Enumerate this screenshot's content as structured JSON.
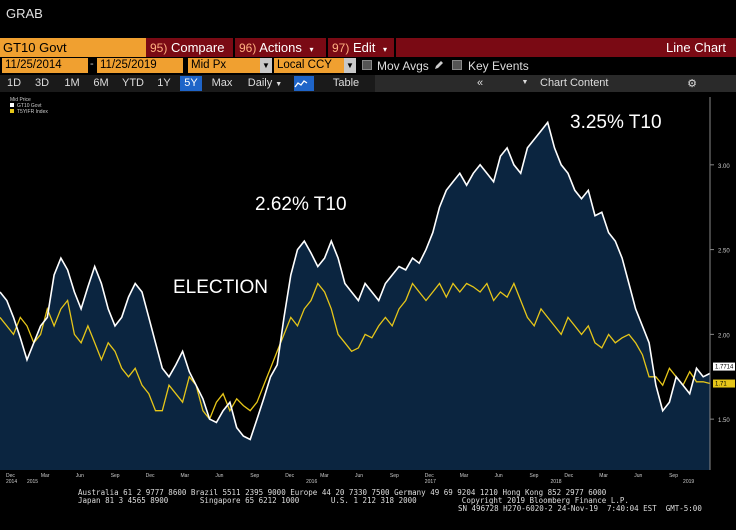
{
  "window": {
    "title": "GRAB"
  },
  "toolbar": {
    "ticker": "GT10 Govt",
    "menus": [
      {
        "num": "95)",
        "label": "Compare",
        "caret": ""
      },
      {
        "num": "96)",
        "label": "Actions",
        "caret": "▾"
      },
      {
        "num": "97)",
        "label": "Edit",
        "caret": "▾"
      }
    ],
    "view_title": "Line Chart"
  },
  "settings": {
    "start_date": "11/25/2014",
    "dash": "-",
    "end_date": "11/25/2019",
    "price_field": "Mid Px",
    "currency": "Local CCY",
    "mov_avgs": "Mov Avgs",
    "key_events": "Key Events"
  },
  "periods": [
    "1D",
    "3D",
    "1M",
    "6M",
    "YTD",
    "1Y",
    "5Y",
    "Max"
  ],
  "active_period": "5Y",
  "frequency": "Daily",
  "table_label": "Table",
  "collapse_icon": "«",
  "chart_content_label": "Chart Content",
  "icons": {
    "pencil": "pencil-icon",
    "line-chart": "line-chart-icon",
    "gear": "gear-icon",
    "collapse": "double-chevron-left-icon"
  },
  "colors": {
    "accent_orange": "#f0a030",
    "menu_red": "#7a0a14",
    "active_blue": "#1e64c8",
    "series1": "#ffffff",
    "series2": "#e6c619",
    "area_fill": "#0b2540"
  },
  "chart_data": {
    "type": "line",
    "legend": {
      "header": "Mid Price",
      "items": [
        "GT10 Govt",
        "T5YIFR Index"
      ],
      "placement": "top-left"
    },
    "annotations": [
      {
        "text": "3.25% T10",
        "x": "2018-10",
        "y": 3.25
      },
      {
        "text": "2.62% T10",
        "x": "2017-03",
        "y": 2.62
      },
      {
        "text": "ELECTION",
        "x": "2016-11",
        "y": 2.0
      }
    ],
    "y_axis": {
      "ticks": [
        "3.00",
        "2.50",
        "2.00",
        "1.50"
      ],
      "range": [
        1.2,
        3.4
      ],
      "side": "right"
    },
    "last_values": {
      "GT10 Govt": "1.7714",
      "T5YIFR Index": "1.71"
    },
    "x_axis": {
      "ticks": [
        {
          "label": "Dec",
          "t": 0.0
        },
        {
          "label": "Mar",
          "t": 0.05
        },
        {
          "label": "Jun",
          "t": 0.1
        },
        {
          "label": "Sep",
          "t": 0.15
        },
        {
          "label": "Dec",
          "t": 0.2
        },
        {
          "label": "Mar",
          "t": 0.25
        },
        {
          "label": "Jun",
          "t": 0.3
        },
        {
          "label": "Sep",
          "t": 0.35
        },
        {
          "label": "Dec",
          "t": 0.4
        },
        {
          "label": "Mar",
          "t": 0.45
        },
        {
          "label": "Jun",
          "t": 0.5
        },
        {
          "label": "Sep",
          "t": 0.55
        },
        {
          "label": "Dec",
          "t": 0.6
        },
        {
          "label": "Mar",
          "t": 0.65
        },
        {
          "label": "Jun",
          "t": 0.7
        },
        {
          "label": "Sep",
          "t": 0.75
        },
        {
          "label": "Dec",
          "t": 0.8
        },
        {
          "label": "Mar",
          "t": 0.85
        },
        {
          "label": "Jun",
          "t": 0.9
        },
        {
          "label": "Sep",
          "t": 0.95
        }
      ],
      "years": [
        {
          "label": "2014",
          "t": 0.0
        },
        {
          "label": "2015",
          "t": 0.03
        },
        {
          "label": "2016",
          "t": 0.43
        },
        {
          "label": "2017",
          "t": 0.6
        },
        {
          "label": "2018",
          "t": 0.78
        },
        {
          "label": "2019",
          "t": 0.97
        }
      ]
    },
    "series": [
      {
        "name": "GT10 Govt",
        "color": "#ffffff",
        "values": [
          2.25,
          2.2,
          2.1,
          1.98,
          1.85,
          1.95,
          2.05,
          2.1,
          2.35,
          2.45,
          2.38,
          2.25,
          2.15,
          2.28,
          2.4,
          2.3,
          2.15,
          2.05,
          2.1,
          2.22,
          2.3,
          2.25,
          2.1,
          1.95,
          1.8,
          1.75,
          1.82,
          1.9,
          1.78,
          1.7,
          1.62,
          1.5,
          1.48,
          1.55,
          1.6,
          1.45,
          1.4,
          1.38,
          1.5,
          1.62,
          1.75,
          1.82,
          2.1,
          2.35,
          2.5,
          2.55,
          2.48,
          2.4,
          2.45,
          2.55,
          2.45,
          2.3,
          2.25,
          2.2,
          2.3,
          2.25,
          2.2,
          2.3,
          2.35,
          2.4,
          2.38,
          2.45,
          2.42,
          2.5,
          2.6,
          2.75,
          2.85,
          2.9,
          2.95,
          2.88,
          2.95,
          3.0,
          2.95,
          2.9,
          3.05,
          3.1,
          3.0,
          2.95,
          3.1,
          3.15,
          3.2,
          3.25,
          3.1,
          3.0,
          2.95,
          2.85,
          2.8,
          2.85,
          2.7,
          2.72,
          2.6,
          2.55,
          2.45,
          2.3,
          2.15,
          2.05,
          1.95,
          1.7,
          1.55,
          1.6,
          1.75,
          1.7,
          1.65,
          1.8,
          1.75,
          1.77
        ]
      },
      {
        "name": "T5YIFR Index",
        "color": "#e6c619",
        "values": [
          2.1,
          2.05,
          2.0,
          2.1,
          2.05,
          1.95,
          2.0,
          2.15,
          2.05,
          2.15,
          2.2,
          2.0,
          1.95,
          2.05,
          1.95,
          1.85,
          1.95,
          1.9,
          1.8,
          1.75,
          1.8,
          1.7,
          1.65,
          1.55,
          1.55,
          1.7,
          1.65,
          1.6,
          1.75,
          1.7,
          1.55,
          1.5,
          1.6,
          1.65,
          1.55,
          1.62,
          1.58,
          1.55,
          1.6,
          1.7,
          1.8,
          1.9,
          2.0,
          2.1,
          2.05,
          2.15,
          2.2,
          2.3,
          2.25,
          2.15,
          2.0,
          1.95,
          1.9,
          1.92,
          2.0,
          1.98,
          2.05,
          2.1,
          2.05,
          2.15,
          2.2,
          2.3,
          2.25,
          2.2,
          2.25,
          2.3,
          2.22,
          2.3,
          2.25,
          2.3,
          2.28,
          2.25,
          2.3,
          2.2,
          2.25,
          2.22,
          2.3,
          2.2,
          2.1,
          2.05,
          2.15,
          2.1,
          2.05,
          2.0,
          2.1,
          2.05,
          2.0,
          2.05,
          1.95,
          1.92,
          2.0,
          1.95,
          1.98,
          2.0,
          1.95,
          1.88,
          1.75,
          1.75,
          1.7,
          1.8,
          1.75,
          1.7,
          1.78,
          1.72,
          1.72,
          1.71
        ]
      }
    ]
  },
  "footer": {
    "line1": "Australia 61 2 9777 8600 Brazil 5511 2395 9000 Europe 44 20 7330 7500 Germany 49 69 9204 1210 Hong Kong 852 2977 6000",
    "line2": "Japan 81 3 4565 8900       Singapore 65 6212 1000       U.S. 1 212 318 2000          Copyright 2019 Bloomberg Finance L.P.",
    "line3": "SN 496728 H270-6020-2 24-Nov-19  7:40:04 EST  GMT-5:00"
  }
}
